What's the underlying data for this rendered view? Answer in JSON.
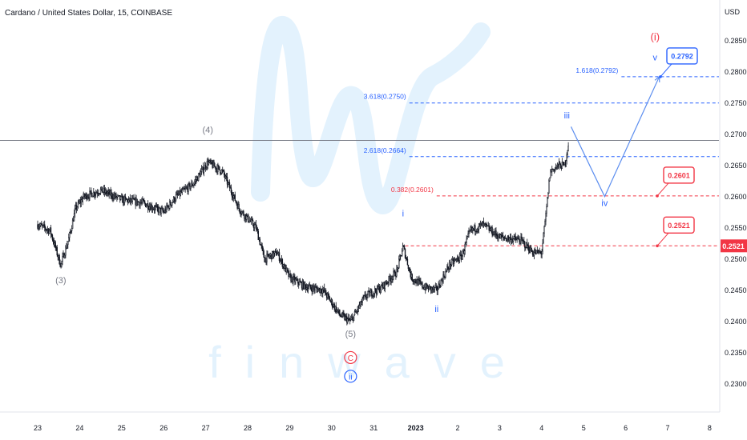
{
  "chart_data": {
    "type": "candlestick",
    "title": "Cardano / United States Dollar, 15, COINBASE",
    "ylabel": "USD",
    "ylim": [
      0.2256,
      0.2915
    ],
    "y_ticks": [
      0.285,
      0.28,
      0.275,
      0.27,
      0.265,
      0.26,
      0.255,
      0.25,
      0.245,
      0.24,
      0.235,
      0.23
    ],
    "x_ticks": [
      "23",
      "24",
      "25",
      "26",
      "27",
      "28",
      "29",
      "30",
      "31",
      "2023",
      "2",
      "3",
      "4",
      "5",
      "6",
      "7",
      "8"
    ],
    "current_price": "0.2521",
    "colors": {
      "up": "#000000",
      "down": "#000000",
      "blue": "#2962ff",
      "red": "#f23645",
      "grey": "#787b86",
      "watermark": "#e3f2fd"
    },
    "price_path": [
      {
        "t": 0.0,
        "p": 0.2555
      },
      {
        "t": 0.3,
        "p": 0.2545
      },
      {
        "t": 0.55,
        "p": 0.249
      },
      {
        "t": 0.75,
        "p": 0.2535
      },
      {
        "t": 0.9,
        "p": 0.258
      },
      {
        "t": 1.1,
        "p": 0.26
      },
      {
        "t": 1.5,
        "p": 0.261
      },
      {
        "t": 2.0,
        "p": 0.2595
      },
      {
        "t": 2.5,
        "p": 0.259
      },
      {
        "t": 3.0,
        "p": 0.2575
      },
      {
        "t": 3.3,
        "p": 0.26
      },
      {
        "t": 3.7,
        "p": 0.262
      },
      {
        "t": 4.05,
        "p": 0.2655
      },
      {
        "t": 4.4,
        "p": 0.264
      },
      {
        "t": 4.8,
        "p": 0.258
      },
      {
        "t": 5.2,
        "p": 0.255
      },
      {
        "t": 5.4,
        "p": 0.25
      },
      {
        "t": 5.7,
        "p": 0.251
      },
      {
        "t": 6.0,
        "p": 0.247
      },
      {
        "t": 6.4,
        "p": 0.2455
      },
      {
        "t": 6.8,
        "p": 0.245
      },
      {
        "t": 7.2,
        "p": 0.241
      },
      {
        "t": 7.45,
        "p": 0.24
      },
      {
        "t": 7.8,
        "p": 0.244
      },
      {
        "t": 8.2,
        "p": 0.2455
      },
      {
        "t": 8.55,
        "p": 0.248
      },
      {
        "t": 8.7,
        "p": 0.252
      },
      {
        "t": 8.9,
        "p": 0.247
      },
      {
        "t": 9.2,
        "p": 0.2455
      },
      {
        "t": 9.5,
        "p": 0.245
      },
      {
        "t": 9.8,
        "p": 0.249
      },
      {
        "t": 10.1,
        "p": 0.2505
      },
      {
        "t": 10.3,
        "p": 0.2545
      },
      {
        "t": 10.6,
        "p": 0.2555
      },
      {
        "t": 11.0,
        "p": 0.2535
      },
      {
        "t": 11.5,
        "p": 0.253
      },
      {
        "t": 11.8,
        "p": 0.251
      },
      {
        "t": 12.0,
        "p": 0.251
      },
      {
        "t": 12.1,
        "p": 0.257
      },
      {
        "t": 12.2,
        "p": 0.264
      },
      {
        "t": 12.4,
        "p": 0.265
      },
      {
        "t": 12.55,
        "p": 0.265
      },
      {
        "t": 12.65,
        "p": 0.269
      }
    ],
    "horizontal_lines": [
      {
        "price": 0.2792,
        "label": "1.618(0.2792)",
        "color": "#2962ff",
        "style": "dashed"
      },
      {
        "price": 0.275,
        "label": "3.618(0.2750)",
        "color": "#2962ff",
        "style": "dashed"
      },
      {
        "price": 0.2664,
        "label": "2.618(0.2664)",
        "color": "#2962ff",
        "style": "dashed"
      },
      {
        "price": 0.2601,
        "label": "0.382(0.2601)",
        "color": "#f23645",
        "style": "dashed"
      },
      {
        "price": 0.2521,
        "label": "",
        "color": "#f23645",
        "style": "dashed"
      },
      {
        "price": 0.269,
        "label": "",
        "color": "#787b86",
        "style": "solid"
      }
    ],
    "callouts": [
      {
        "text": "0.2792",
        "price": 0.2792,
        "color": "#2962ff"
      },
      {
        "text": "0.2601",
        "price": 0.2601,
        "color": "#f23645"
      },
      {
        "text": "0.2521",
        "price": 0.2521,
        "color": "#f23645"
      }
    ],
    "projection_path": [
      {
        "t": 12.7,
        "p": 0.2712
      },
      {
        "t": 13.5,
        "p": 0.26
      },
      {
        "t": 14.8,
        "p": 0.2792
      }
    ],
    "wave_labels": [
      {
        "text": "(3)",
        "t": 0.55,
        "p": 0.2461,
        "color": "#787b86"
      },
      {
        "text": "(4)",
        "t": 4.05,
        "p": 0.2702,
        "color": "#787b86"
      },
      {
        "text": "(5)",
        "t": 7.45,
        "p": 0.2375,
        "color": "#787b86"
      },
      {
        "text": "i",
        "t": 8.7,
        "p": 0.2568,
        "color": "#2962ff"
      },
      {
        "text": "ii",
        "t": 9.5,
        "p": 0.2415,
        "color": "#2962ff"
      },
      {
        "text": "iii",
        "t": 12.6,
        "p": 0.2725,
        "color": "#2962ff"
      },
      {
        "text": "iv",
        "t": 13.5,
        "p": 0.2585,
        "color": "#2962ff"
      },
      {
        "text": "v",
        "t": 14.7,
        "p": 0.2818,
        "color": "#2962ff"
      },
      {
        "text": "(i)",
        "t": 14.7,
        "p": 0.285,
        "color": "#f23645"
      }
    ],
    "circled_labels": [
      {
        "text": "C",
        "t": 7.45,
        "p": 0.2342,
        "color": "#f23645"
      },
      {
        "text": "ii",
        "t": 7.45,
        "p": 0.2312,
        "color": "#2962ff"
      }
    ],
    "watermark_text": "finwave"
  }
}
